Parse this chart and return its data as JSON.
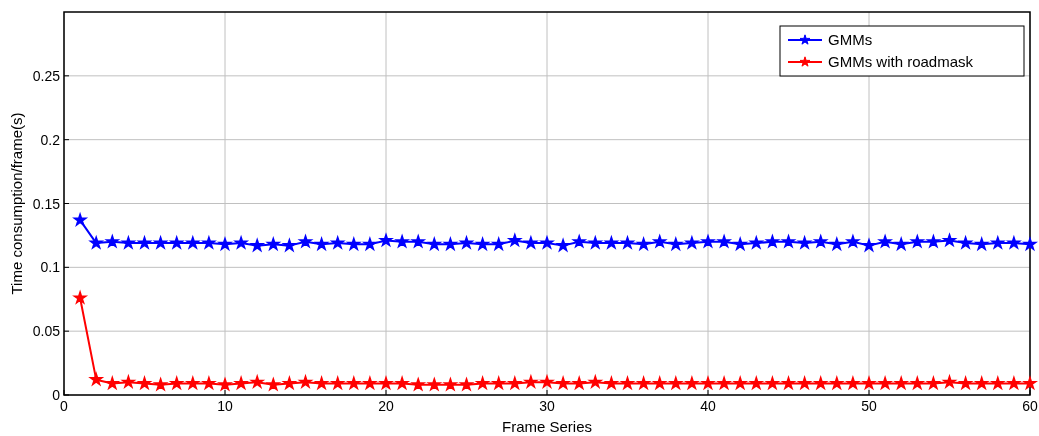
{
  "chart_data": {
    "type": "line",
    "xlabel": "Frame Series",
    "ylabel": "Time consumption/frame(s)",
    "x": [
      1,
      2,
      3,
      4,
      5,
      6,
      7,
      8,
      9,
      10,
      11,
      12,
      13,
      14,
      15,
      16,
      17,
      18,
      19,
      20,
      21,
      22,
      23,
      24,
      25,
      26,
      27,
      28,
      29,
      30,
      31,
      32,
      33,
      34,
      35,
      36,
      37,
      38,
      39,
      40,
      41,
      42,
      43,
      44,
      45,
      46,
      47,
      48,
      49,
      50,
      51,
      52,
      53,
      54,
      55,
      56,
      57,
      58,
      59,
      60
    ],
    "series": [
      {
        "name": "GMMs",
        "color": "#0000ff",
        "values": [
          0.137,
          0.119,
          0.12,
          0.119,
          0.119,
          0.119,
          0.119,
          0.119,
          0.119,
          0.118,
          0.119,
          0.117,
          0.118,
          0.117,
          0.12,
          0.118,
          0.119,
          0.118,
          0.118,
          0.121,
          0.12,
          0.12,
          0.118,
          0.118,
          0.119,
          0.118,
          0.118,
          0.121,
          0.119,
          0.119,
          0.117,
          0.12,
          0.119,
          0.119,
          0.119,
          0.118,
          0.12,
          0.118,
          0.119,
          0.12,
          0.12,
          0.118,
          0.119,
          0.12,
          0.12,
          0.119,
          0.12,
          0.118,
          0.12,
          0.117,
          0.12,
          0.118,
          0.12,
          0.12,
          0.121,
          0.119,
          0.118,
          0.119,
          0.119,
          0.118
        ]
      },
      {
        "name": "GMMs with roadmask",
        "color": "#ff0000",
        "values": [
          0.076,
          0.012,
          0.009,
          0.01,
          0.009,
          0.008,
          0.009,
          0.009,
          0.009,
          0.008,
          0.009,
          0.01,
          0.008,
          0.009,
          0.01,
          0.009,
          0.009,
          0.009,
          0.009,
          0.009,
          0.009,
          0.008,
          0.008,
          0.008,
          0.008,
          0.009,
          0.009,
          0.009,
          0.01,
          0.01,
          0.009,
          0.009,
          0.01,
          0.009,
          0.009,
          0.009,
          0.009,
          0.009,
          0.009,
          0.009,
          0.009,
          0.009,
          0.009,
          0.009,
          0.009,
          0.009,
          0.009,
          0.009,
          0.009,
          0.009,
          0.009,
          0.009,
          0.009,
          0.009,
          0.01,
          0.009,
          0.009,
          0.009,
          0.009,
          0.009
        ]
      }
    ],
    "xlim": [
      0,
      60
    ],
    "xticks": [
      0,
      10,
      20,
      30,
      40,
      50,
      60
    ],
    "ylim": [
      0,
      0.3
    ],
    "yticks": [
      0,
      0.05,
      0.1,
      0.15,
      0.2,
      0.25
    ],
    "grid": true,
    "legend": "top right",
    "marker": "star",
    "line_style": "solid"
  }
}
